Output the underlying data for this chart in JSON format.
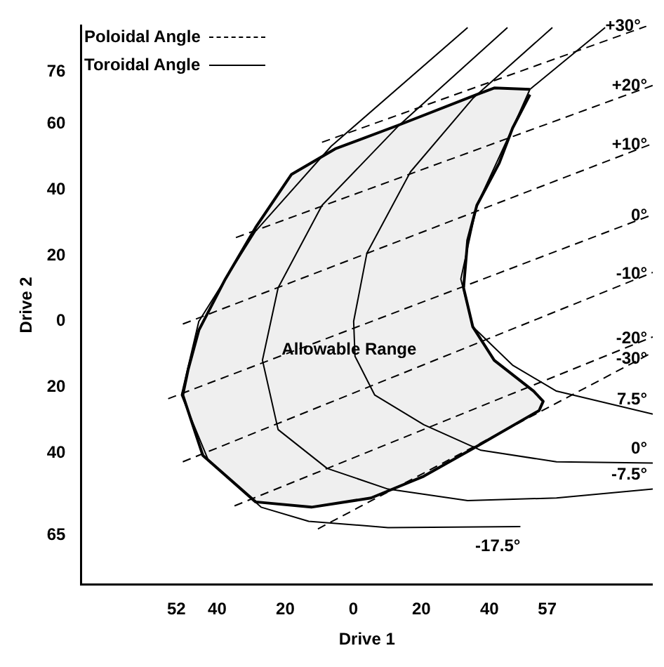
{
  "chart_data": {
    "type": "line",
    "xlabel": "Drive 1",
    "ylabel": "Drive 2",
    "xlim": [
      -80,
      88
    ],
    "ylim": [
      -80,
      90
    ],
    "xticks": [
      {
        "value": -52,
        "label": "52"
      },
      {
        "value": -40,
        "label": "40"
      },
      {
        "value": -20,
        "label": "20"
      },
      0,
      20,
      40,
      57
    ],
    "yticks": [
      76,
      60,
      40,
      20,
      0,
      {
        "value": -20,
        "label": "20"
      },
      {
        "value": -40,
        "label": "40"
      },
      {
        "value": -65,
        "label": "65"
      }
    ],
    "grid": false,
    "marker": "none",
    "series": [
      {
        "type": "area",
        "name": "Allowable Range",
        "color": "#efefef",
        "x": [
          51.9,
          41.4,
          36.3,
          13.0,
          -5.3,
          -18.2,
          -28.7,
          -37.6,
          -45.4,
          -48.5,
          -50.1,
          -44.2,
          -28.7,
          -12.3,
          5.2,
          20.7,
          36.3,
          54.6,
          55.8,
          53.0,
          41.4,
          35.1,
          32.4,
          33.6,
          36.3,
          42.9,
          46.8,
          51.9
        ],
        "values": [
          70.6,
          71.0,
          69.0,
          59.6,
          52.5,
          44.7,
          28.6,
          12.9,
          -2.7,
          -14.5,
          -22.4,
          -40.8,
          -54.9,
          -56.5,
          -53.7,
          -47.1,
          -38.0,
          -27.1,
          -24.3,
          -21.2,
          -11.8,
          -1.6,
          10.2,
          24.7,
          35.3,
          48.2,
          58.8,
          69.0
        ]
      },
      {
        "name": "+30°",
        "color": "#000000",
        "line_style": "dashed",
        "x": [
          -9.2,
          86.1
        ],
        "values": [
          54.5,
          89.8
        ]
      },
      {
        "name": "+20°",
        "color": "#000000",
        "line_style": "dashed",
        "x": [
          -34.5,
          88
        ],
        "values": [
          25.5,
          71.8
        ]
      },
      {
        "name": "+10°",
        "color": "#000000",
        "line_style": "dashed",
        "x": [
          -50.1,
          88
        ],
        "values": [
          -0.8,
          54.1
        ]
      },
      {
        "name": "0°",
        "color": "#000000",
        "line_style": "dashed",
        "x": [
          -54.4,
          88
        ],
        "values": [
          -23.5,
          32.5
        ]
      },
      {
        "name": "-10°",
        "color": "#000000",
        "line_style": "dashed",
        "x": [
          -50.1,
          88
        ],
        "values": [
          -42.7,
          14.9
        ]
      },
      {
        "name": "-20°",
        "color": "#000000",
        "line_style": "dashed",
        "x": [
          -34.9,
          88
        ],
        "values": [
          -56.1,
          -4.7
        ]
      },
      {
        "name": "-30°",
        "color": "#000000",
        "line_style": "dashed",
        "x": [
          -10.4,
          88
        ],
        "values": [
          -63.1,
          -9.4
        ]
      },
      {
        "name": "-17.5°",
        "color": "#000000",
        "line_style": "solid",
        "x": [
          33.6,
          -6.5,
          -28.7,
          -45.4,
          -50.5,
          -42.7,
          -27.1,
          -13.1,
          10.2,
          49.1
        ],
        "values": [
          89.4,
          53.3,
          27.5,
          0,
          -22.4,
          -42,
          -56.5,
          -60.8,
          -62.7,
          -62.4
        ]
      },
      {
        "name": "-7.5°",
        "color": "#000000",
        "line_style": "solid",
        "x": [
          45.3,
          13,
          -9.2,
          -22.1,
          -26.7,
          -22.1,
          -7.7,
          10.2,
          33.6,
          59.7,
          88
        ],
        "values": [
          89.4,
          59.2,
          35.3,
          10.2,
          -11.8,
          -32.9,
          -44.7,
          -51,
          -54.5,
          -53.7,
          -51
        ]
      },
      {
        "name": "0°",
        "color": "#000000",
        "line_style": "solid",
        "x": [
          58.5,
          35.1,
          16.8,
          4,
          0.1,
          0.5,
          6.3,
          20.7,
          37.5,
          59.7,
          88
        ],
        "values": [
          89.4,
          67.8,
          45.5,
          20.8,
          0,
          -10.6,
          -22.4,
          -31.4,
          -39.2,
          -42.7,
          -43.1
        ]
      },
      {
        "name": "7.5°",
        "color": "#000000",
        "line_style": "solid",
        "x": [
          74,
          51.9,
          46.8,
          36.3,
          31.6,
          35.1,
          46.8,
          59.7,
          88
        ],
        "values": [
          89.4,
          70.6,
          58.8,
          35.3,
          12.9,
          -1.6,
          -13.3,
          -21.2,
          -28.2
        ]
      }
    ],
    "annotations": [
      "Poloidal Angle",
      "Toroidal Angle"
    ]
  }
}
